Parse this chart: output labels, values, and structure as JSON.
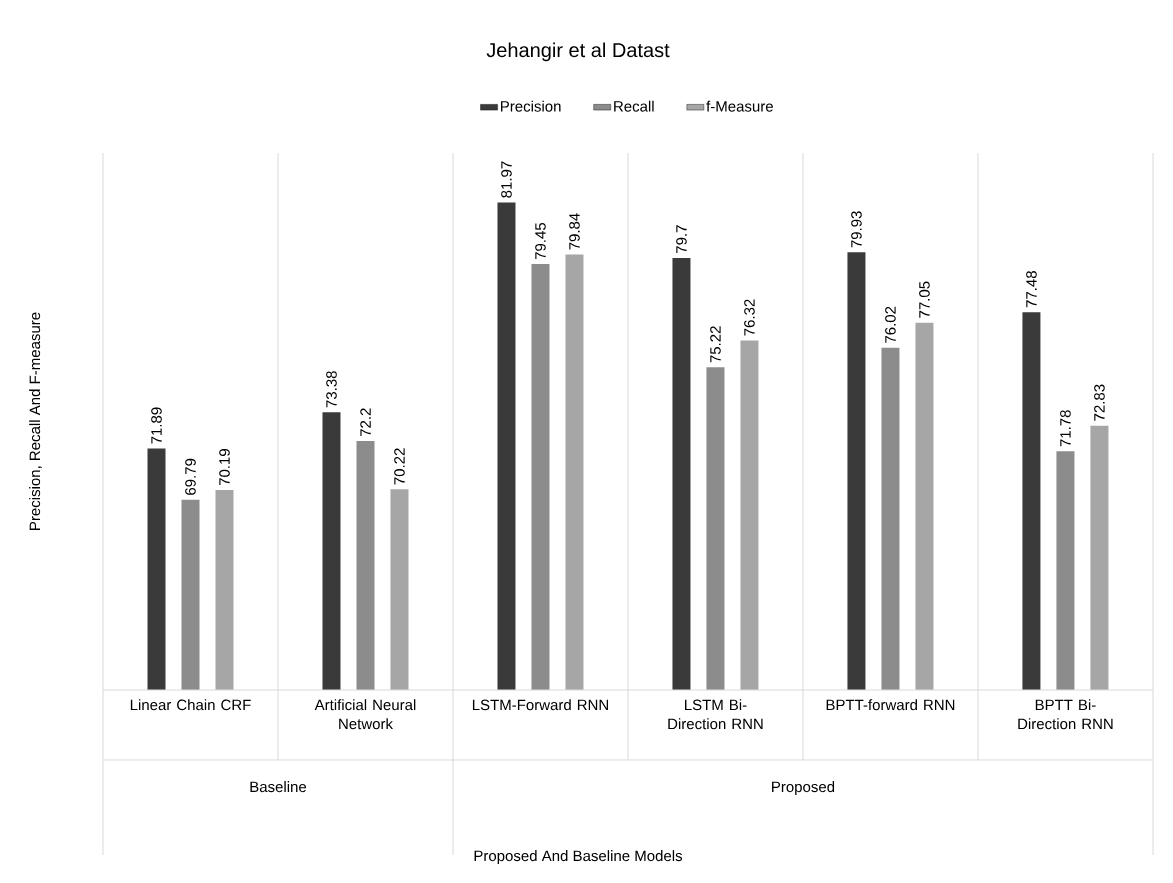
{
  "chart_data": {
    "type": "bar",
    "title": "Jehangir et al Datast",
    "ylabel": "Precision, Recall And F-measure",
    "categories": [
      "Linear Chain CRF",
      "Artificial Neural Network",
      "LSTM-Forward RNN",
      "LSTM Bi-Direction RNN",
      "BPTT-forward RNN",
      "BPTT Bi-Direction RNN"
    ],
    "series": [
      {
        "name": "Precision",
        "color": "#3a3a3a",
        "values": [
          71.89,
          73.38,
          81.97,
          79.7,
          79.93,
          77.48
        ]
      },
      {
        "name": "Recall",
        "color": "#8c8c8c",
        "values": [
          69.79,
          72.2,
          79.45,
          75.22,
          76.02,
          71.78
        ]
      },
      {
        "name": "f-Measure",
        "color": "#a6a6a6",
        "values": [
          70.19,
          70.22,
          79.84,
          76.32,
          77.05,
          72.83
        ]
      }
    ],
    "annotations": [
      "Baseline",
      "Proposed",
      "Proposed And Baseline Models"
    ],
    "ylim": [
      62,
      84
    ],
    "tick_labels": "x",
    "data_labels": true,
    "legend": "top"
  }
}
